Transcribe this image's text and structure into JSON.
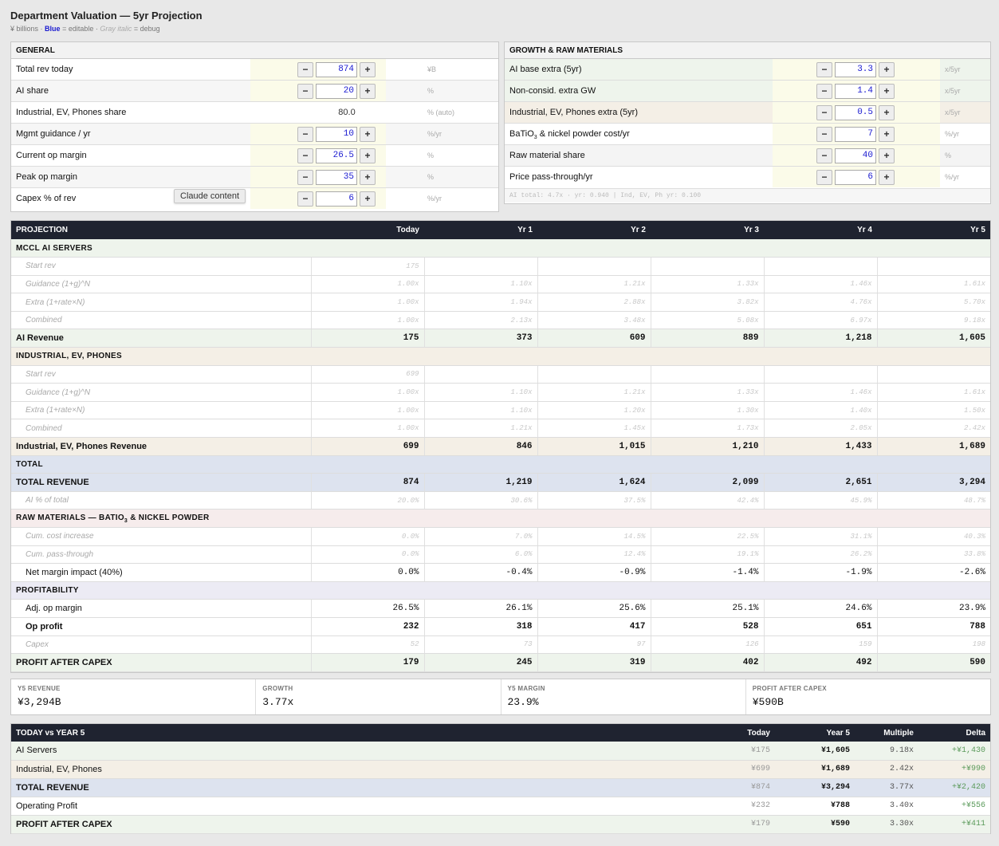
{
  "header": {
    "title": "Department Valuation — 5yr Projection",
    "legend_prefix": "¥ billions ·",
    "legend_blue": "Blue",
    "legend_mid": "= editable ·",
    "legend_gray": "Gray italic",
    "legend_suffix": "= debug"
  },
  "general": {
    "title": "GENERAL",
    "rows": [
      {
        "label": "Total rev today",
        "value": "874",
        "unit": "¥B"
      },
      {
        "label": "AI share",
        "value": "20",
        "unit": "%"
      },
      {
        "label": "Industrial, EV, Phones share",
        "value": "80.0",
        "unit": "% (auto)"
      },
      {
        "label": "Mgmt guidance / yr",
        "value": "10",
        "unit": "%/yr"
      },
      {
        "label": "Current op margin",
        "value": "26.5",
        "unit": "%"
      },
      {
        "label": "Peak op margin",
        "value": "35",
        "unit": "%"
      },
      {
        "label": "Capex % of rev",
        "value": "6",
        "unit": "%/yr"
      }
    ]
  },
  "growth": {
    "title": "GROWTH & RAW MATERIALS",
    "rows": [
      {
        "label": "AI base extra (5yr)",
        "value": "3.3",
        "unit": "x/5yr",
        "tint": "#eef4ec"
      },
      {
        "label": "Non-consid. extra GW",
        "value": "1.4",
        "unit": "x/5yr",
        "tint": "#eef4ec"
      },
      {
        "label": "Industrial, EV, Phones extra (5yr)",
        "value": "0.5",
        "unit": "x/5yr",
        "tint": "#f4efe6"
      },
      {
        "label": "BaTiO",
        "label_sub": "3",
        "label_rest": " & nickel powder cost/yr",
        "value": "7",
        "unit": "%/yr",
        "tint": "#ffffff"
      },
      {
        "label": "Raw material share",
        "value": "40",
        "unit": "%",
        "tint": "#f4f4f4"
      },
      {
        "label": "Price pass-through/yr",
        "value": "6",
        "unit": "%/yr",
        "tint": "#ffffff"
      }
    ],
    "debug": "AI total: 4.7x · yr: 0.940 | Ind, EV, Ph yr: 0.100"
  },
  "tooltip": "Claude content",
  "projection": {
    "columns": [
      "PROJECTION",
      "Today",
      "Yr 1",
      "Yr 2",
      "Yr 3",
      "Yr 4",
      "Yr 5"
    ],
    "rows": [
      {
        "kind": "sec",
        "label": "MCCL AI SERVERS",
        "bg": "#eef4ec"
      },
      {
        "kind": "dbgrow",
        "label": "Start rev",
        "cells": [
          "175",
          "",
          "",
          "",
          "",
          ""
        ]
      },
      {
        "kind": "dbgrow",
        "label": "Guidance (1+g)^N",
        "cells": [
          "1.00x",
          "1.10x",
          "1.21x",
          "1.33x",
          "1.46x",
          "1.61x"
        ]
      },
      {
        "kind": "dbgrow",
        "label": "Extra (1+rate×N)",
        "cells": [
          "1.00x",
          "1.94x",
          "2.88x",
          "3.82x",
          "4.76x",
          "5.70x"
        ]
      },
      {
        "kind": "dbgrow",
        "label": "Combined",
        "cells": [
          "1.00x",
          "2.13x",
          "3.48x",
          "5.08x",
          "6.97x",
          "9.18x"
        ]
      },
      {
        "kind": "bold",
        "label": "AI Revenue",
        "bg": "#eef4ec",
        "cells": [
          "175",
          "373",
          "609",
          "889",
          "1,218",
          "1,605"
        ]
      },
      {
        "kind": "sec",
        "label": "INDUSTRIAL, EV, PHONES",
        "bg": "#f4efe6"
      },
      {
        "kind": "dbgrow",
        "label": "Start rev",
        "cells": [
          "699",
          "",
          "",
          "",
          "",
          ""
        ]
      },
      {
        "kind": "dbgrow",
        "label": "Guidance (1+g)^N",
        "cells": [
          "1.00x",
          "1.10x",
          "1.21x",
          "1.33x",
          "1.46x",
          "1.61x"
        ]
      },
      {
        "kind": "dbgrow",
        "label": "Extra (1+rate×N)",
        "cells": [
          "1.00x",
          "1.10x",
          "1.20x",
          "1.30x",
          "1.40x",
          "1.50x"
        ]
      },
      {
        "kind": "dbgrow",
        "label": "Combined",
        "cells": [
          "1.00x",
          "1.21x",
          "1.45x",
          "1.73x",
          "2.05x",
          "2.42x"
        ]
      },
      {
        "kind": "bold",
        "label": "Industrial, EV, Phones Revenue",
        "bg": "#f4efe6",
        "cells": [
          "699",
          "846",
          "1,015",
          "1,210",
          "1,433",
          "1,689"
        ]
      },
      {
        "kind": "sec",
        "label": "TOTAL",
        "bg": "#dde3ef"
      },
      {
        "kind": "bold",
        "label": "TOTAL REVENUE",
        "bg": "#dde3ef",
        "cells": [
          "874",
          "1,219",
          "1,624",
          "2,099",
          "2,651",
          "3,294"
        ]
      },
      {
        "kind": "dbgrow",
        "label": "AI % of total",
        "cells": [
          "20.0%",
          "30.6%",
          "37.5%",
          "42.4%",
          "45.9%",
          "48.7%"
        ]
      },
      {
        "kind": "sec",
        "label": "RAW MATERIALS — BATIO",
        "label_sub": "3",
        "label_rest": " & NICKEL POWDER",
        "bg": "#f6ecec"
      },
      {
        "kind": "dbgrow",
        "label": "Cum. cost increase",
        "cells": [
          "0.0%",
          "7.0%",
          "14.5%",
          "22.5%",
          "31.1%",
          "40.3%"
        ]
      },
      {
        "kind": "dbgrow",
        "label": "Cum. pass-through",
        "cells": [
          "0.0%",
          "6.0%",
          "12.4%",
          "19.1%",
          "26.2%",
          "33.8%"
        ]
      },
      {
        "kind": "indent",
        "label": "Net margin impact (40%)",
        "cells": [
          "0.0%",
          "-0.4%",
          "-0.9%",
          "-1.4%",
          "-1.9%",
          "-2.6%"
        ]
      },
      {
        "kind": "sec",
        "label": "PROFITABILITY",
        "bg": "#ecebf4"
      },
      {
        "kind": "indent",
        "label": "Adj. op margin",
        "cells": [
          "26.5%",
          "26.1%",
          "25.6%",
          "25.1%",
          "24.6%",
          "23.9%"
        ]
      },
      {
        "kind": "indent bold",
        "label": "Op profit",
        "cells": [
          "232",
          "318",
          "417",
          "528",
          "651",
          "788"
        ]
      },
      {
        "kind": "dbgrow",
        "label": "Capex",
        "cells": [
          "52",
          "73",
          "97",
          "126",
          "159",
          "198"
        ]
      },
      {
        "kind": "bold",
        "label": "PROFIT AFTER CAPEX",
        "bg": "#eef4ec",
        "cells": [
          "179",
          "245",
          "319",
          "402",
          "492",
          "590"
        ]
      }
    ]
  },
  "kpis": [
    {
      "label": "Y5 REVENUE",
      "value": "¥3,294B"
    },
    {
      "label": "GROWTH",
      "value": "3.77x"
    },
    {
      "label": "Y5 MARGIN",
      "value": "23.9%"
    },
    {
      "label": "PROFIT AFTER CAPEX",
      "value": "¥590B"
    }
  ],
  "compare": {
    "columns": [
      "TODAY vs YEAR 5",
      "Today",
      "Year 5",
      "Multiple",
      "Delta"
    ],
    "rows": [
      {
        "label": "AI Servers",
        "bg": "#eef4ec",
        "bold": false,
        "today": "¥175",
        "y5": "¥1,605",
        "mult": "9.18x",
        "delta": "+¥1,430"
      },
      {
        "label": "Industrial, EV, Phones",
        "bg": "#f4efe6",
        "bold": false,
        "today": "¥699",
        "y5": "¥1,689",
        "mult": "2.42x",
        "delta": "+¥990"
      },
      {
        "label": "TOTAL REVENUE",
        "bg": "#dde3ef",
        "bold": true,
        "today": "¥874",
        "y5": "¥3,294",
        "mult": "3.77x",
        "delta": "+¥2,420"
      },
      {
        "label": "Operating Profit",
        "bg": "#ffffff",
        "bold": false,
        "today": "¥232",
        "y5": "¥788",
        "mult": "3.40x",
        "delta": "+¥556"
      },
      {
        "label": "PROFIT AFTER CAPEX",
        "bg": "#eef4ec",
        "bold": true,
        "today": "¥179",
        "y5": "¥590",
        "mult": "3.30x",
        "delta": "+¥411"
      }
    ]
  }
}
